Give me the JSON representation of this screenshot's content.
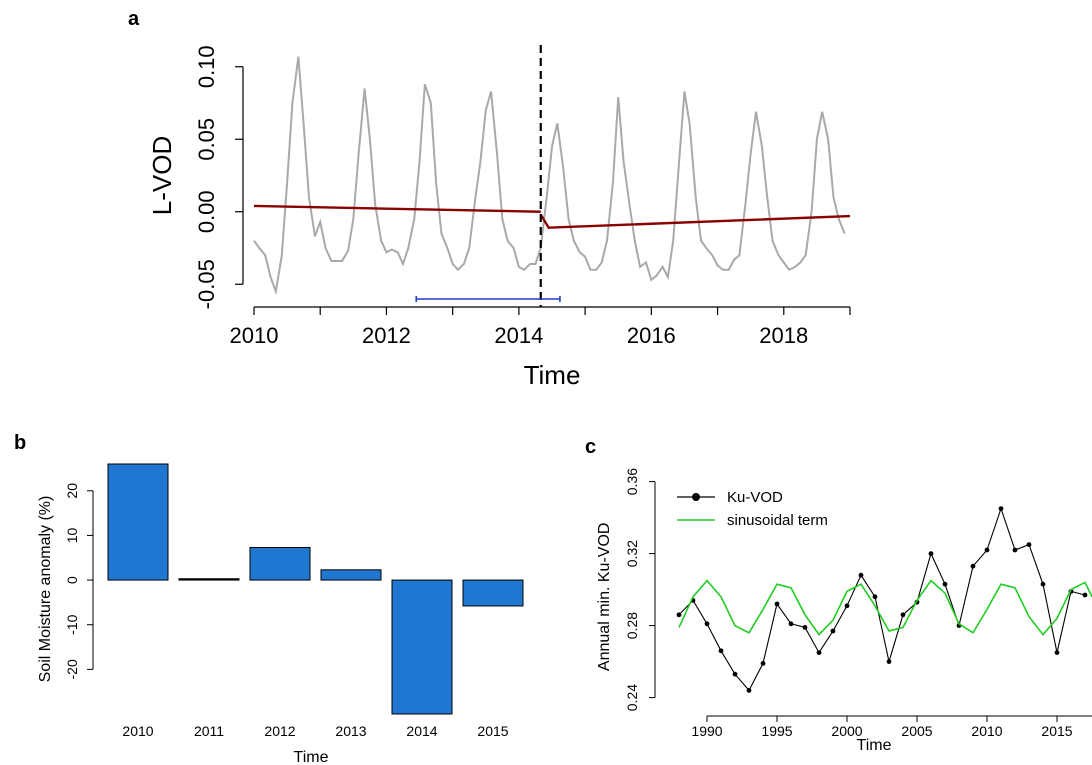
{
  "chart_data": [
    {
      "panel": "a",
      "type": "line",
      "xlabel": "Time",
      "ylabel": "L-VOD",
      "xlim": [
        2010,
        2019
      ],
      "ylim": [
        -0.065,
        0.115
      ],
      "x_ticks": [
        2010,
        2012,
        2014,
        2016,
        2018
      ],
      "x_tick_labels": [
        "2010",
        "2012",
        "2014",
        "2016",
        "2018"
      ],
      "y_ticks": [
        -0.05,
        0.0,
        0.05,
        0.1
      ],
      "y_tick_labels": [
        "-0.05",
        "0.00",
        "0.05",
        "0.10"
      ],
      "series": [
        {
          "color": "#a9a9a9",
          "x": [
            2010.0,
            2010.08,
            2010.17,
            2010.25,
            2010.33,
            2010.42,
            2010.5,
            2010.58,
            2010.67,
            2010.75,
            2010.83,
            2010.92,
            2011.0,
            2011.08,
            2011.17,
            2011.25,
            2011.33,
            2011.42,
            2011.5,
            2011.58,
            2011.67,
            2011.75,
            2011.83,
            2011.92,
            2012.0,
            2012.08,
            2012.17,
            2012.25,
            2012.33,
            2012.42,
            2012.5,
            2012.58,
            2012.67,
            2012.75,
            2012.83,
            2012.92,
            2013.0,
            2013.08,
            2013.17,
            2013.25,
            2013.33,
            2013.42,
            2013.5,
            2013.58,
            2013.67,
            2013.75,
            2013.83,
            2013.92,
            2014.0,
            2014.08,
            2014.17,
            2014.25,
            2014.33,
            2014.42,
            2014.5,
            2014.58,
            2014.67,
            2014.75,
            2014.83,
            2014.92,
            2015.0,
            2015.08,
            2015.17,
            2015.25,
            2015.33,
            2015.42,
            2015.5,
            2015.58,
            2015.67,
            2015.75,
            2015.83,
            2015.92,
            2016.0,
            2016.08,
            2016.17,
            2016.25,
            2016.33,
            2016.42,
            2016.5,
            2016.58,
            2016.67,
            2016.75,
            2016.83,
            2016.92,
            2017.0,
            2017.08,
            2017.17,
            2017.25,
            2017.33,
            2017.42,
            2017.5,
            2017.58,
            2017.67,
            2017.75,
            2017.83,
            2017.92,
            2018.0,
            2018.08,
            2018.17,
            2018.25,
            2018.33,
            2018.42,
            2018.5,
            2018.58,
            2018.67,
            2018.75,
            2018.83,
            2018.92
          ],
          "y": [
            -0.02,
            -0.025,
            -0.03,
            -0.045,
            -0.055,
            -0.03,
            0.02,
            0.075,
            0.107,
            0.06,
            0.01,
            -0.017,
            -0.007,
            -0.025,
            -0.034,
            -0.034,
            -0.034,
            -0.027,
            -0.005,
            0.04,
            0.085,
            0.05,
            0.005,
            -0.02,
            -0.028,
            -0.026,
            -0.028,
            -0.036,
            -0.025,
            -0.005,
            0.035,
            0.088,
            0.075,
            0.02,
            -0.015,
            -0.025,
            -0.036,
            -0.04,
            -0.036,
            -0.025,
            0.005,
            0.035,
            0.07,
            0.083,
            0.04,
            -0.005,
            -0.02,
            -0.025,
            -0.038,
            -0.04,
            -0.036,
            -0.036,
            -0.025,
            0.01,
            0.045,
            0.061,
            0.03,
            -0.005,
            -0.02,
            -0.028,
            -0.031,
            -0.04,
            -0.04,
            -0.035,
            -0.02,
            0.02,
            0.079,
            0.035,
            0.005,
            -0.02,
            -0.038,
            -0.035,
            -0.047,
            -0.044,
            -0.038,
            -0.045,
            -0.02,
            0.035,
            0.083,
            0.06,
            0.01,
            -0.02,
            -0.025,
            -0.03,
            -0.037,
            -0.04,
            -0.04,
            -0.033,
            -0.03,
            0.005,
            0.04,
            0.069,
            0.045,
            0.01,
            -0.02,
            -0.03,
            -0.035,
            -0.04,
            -0.038,
            -0.035,
            -0.03,
            0.0,
            0.05,
            0.069,
            0.05,
            0.01,
            -0.005,
            -0.015
          ]
        },
        {
          "color": "#8b0000",
          "x": [
            2010.0,
            2014.33
          ],
          "y": [
            0.004,
            0.0
          ]
        },
        {
          "color": "#8b0000",
          "x": [
            2014.33,
            2014.45,
            2019.0
          ],
          "y": [
            -0.002,
            -0.011,
            -0.003
          ]
        }
      ],
      "breakpoint_x": 2014.33,
      "interval": [
        2012.45,
        2014.62
      ],
      "interval_color": "#1f3fbf"
    },
    {
      "panel": "b",
      "type": "bar",
      "xlabel": "Time",
      "ylabel": "Soil Moisture anomaly (%)",
      "categories": [
        "2010",
        "2011",
        "2012",
        "2013",
        "2014",
        "2015"
      ],
      "values": [
        26,
        0.3,
        7.3,
        2.3,
        -30,
        -5.8
      ],
      "ylim": [
        -30,
        26
      ],
      "y_ticks": [
        -20,
        -10,
        0,
        10,
        20
      ],
      "y_tick_labels": [
        "-20",
        "-10",
        "0",
        "10",
        "20"
      ],
      "bar_color": "#1f77d2"
    },
    {
      "panel": "c",
      "type": "line",
      "xlabel": "Time",
      "ylabel": "Annual min. Ku-VOD",
      "xlim": [
        1987,
        2017.5
      ],
      "ylim": [
        0.232,
        0.362
      ],
      "x_ticks": [
        1990,
        1995,
        2000,
        2005,
        2010,
        2015
      ],
      "x_tick_labels": [
        "1990",
        "1995",
        "2000",
        "2005",
        "2010",
        "2015"
      ],
      "y_ticks": [
        0.24,
        0.28,
        0.32,
        0.36
      ],
      "y_tick_labels": [
        "0.24",
        "0.28",
        "0.32",
        "0.36"
      ],
      "legend_position": "top-left",
      "series": [
        {
          "name": "Ku-VOD",
          "color": "#000000",
          "markers": true,
          "x": [
            1988,
            1989,
            1990,
            1991,
            1992,
            1993,
            1994,
            1995,
            1996,
            1997,
            1998,
            1999,
            2000,
            2001,
            2002,
            2003,
            2004,
            2005,
            2006,
            2007,
            2008,
            2009,
            2010,
            2011,
            2012,
            2013,
            2014,
            2015,
            2016,
            2017
          ],
          "y": [
            0.286,
            0.294,
            0.281,
            0.266,
            0.253,
            0.244,
            0.259,
            0.292,
            0.281,
            0.279,
            0.265,
            0.277,
            0.291,
            0.308,
            0.296,
            0.26,
            0.286,
            0.293,
            0.32,
            0.303,
            0.28,
            0.313,
            0.322,
            0.345,
            0.322,
            0.325,
            0.303,
            0.265,
            0.299,
            0.297
          ]
        },
        {
          "name": "sinusoidal term",
          "color": "#22cc22",
          "markers": false,
          "x": [
            1988,
            1989,
            1990,
            1991,
            1992,
            1993,
            1994,
            1995,
            1996,
            1997,
            1998,
            1999,
            2000,
            2001,
            2002,
            2003,
            2004,
            2005,
            2006,
            2007,
            2008,
            2009,
            2010,
            2011,
            2012,
            2013,
            2014,
            2015,
            2016,
            2017,
            2017.5
          ],
          "y": [
            0.279,
            0.296,
            0.305,
            0.296,
            0.28,
            0.276,
            0.289,
            0.303,
            0.301,
            0.286,
            0.275,
            0.283,
            0.299,
            0.303,
            0.291,
            0.277,
            0.279,
            0.294,
            0.305,
            0.298,
            0.281,
            0.276,
            0.289,
            0.303,
            0.301,
            0.285,
            0.275,
            0.284,
            0.3,
            0.304,
            0.296
          ]
        }
      ]
    }
  ],
  "panels": {
    "a": "a",
    "b": "b",
    "c": "c"
  }
}
